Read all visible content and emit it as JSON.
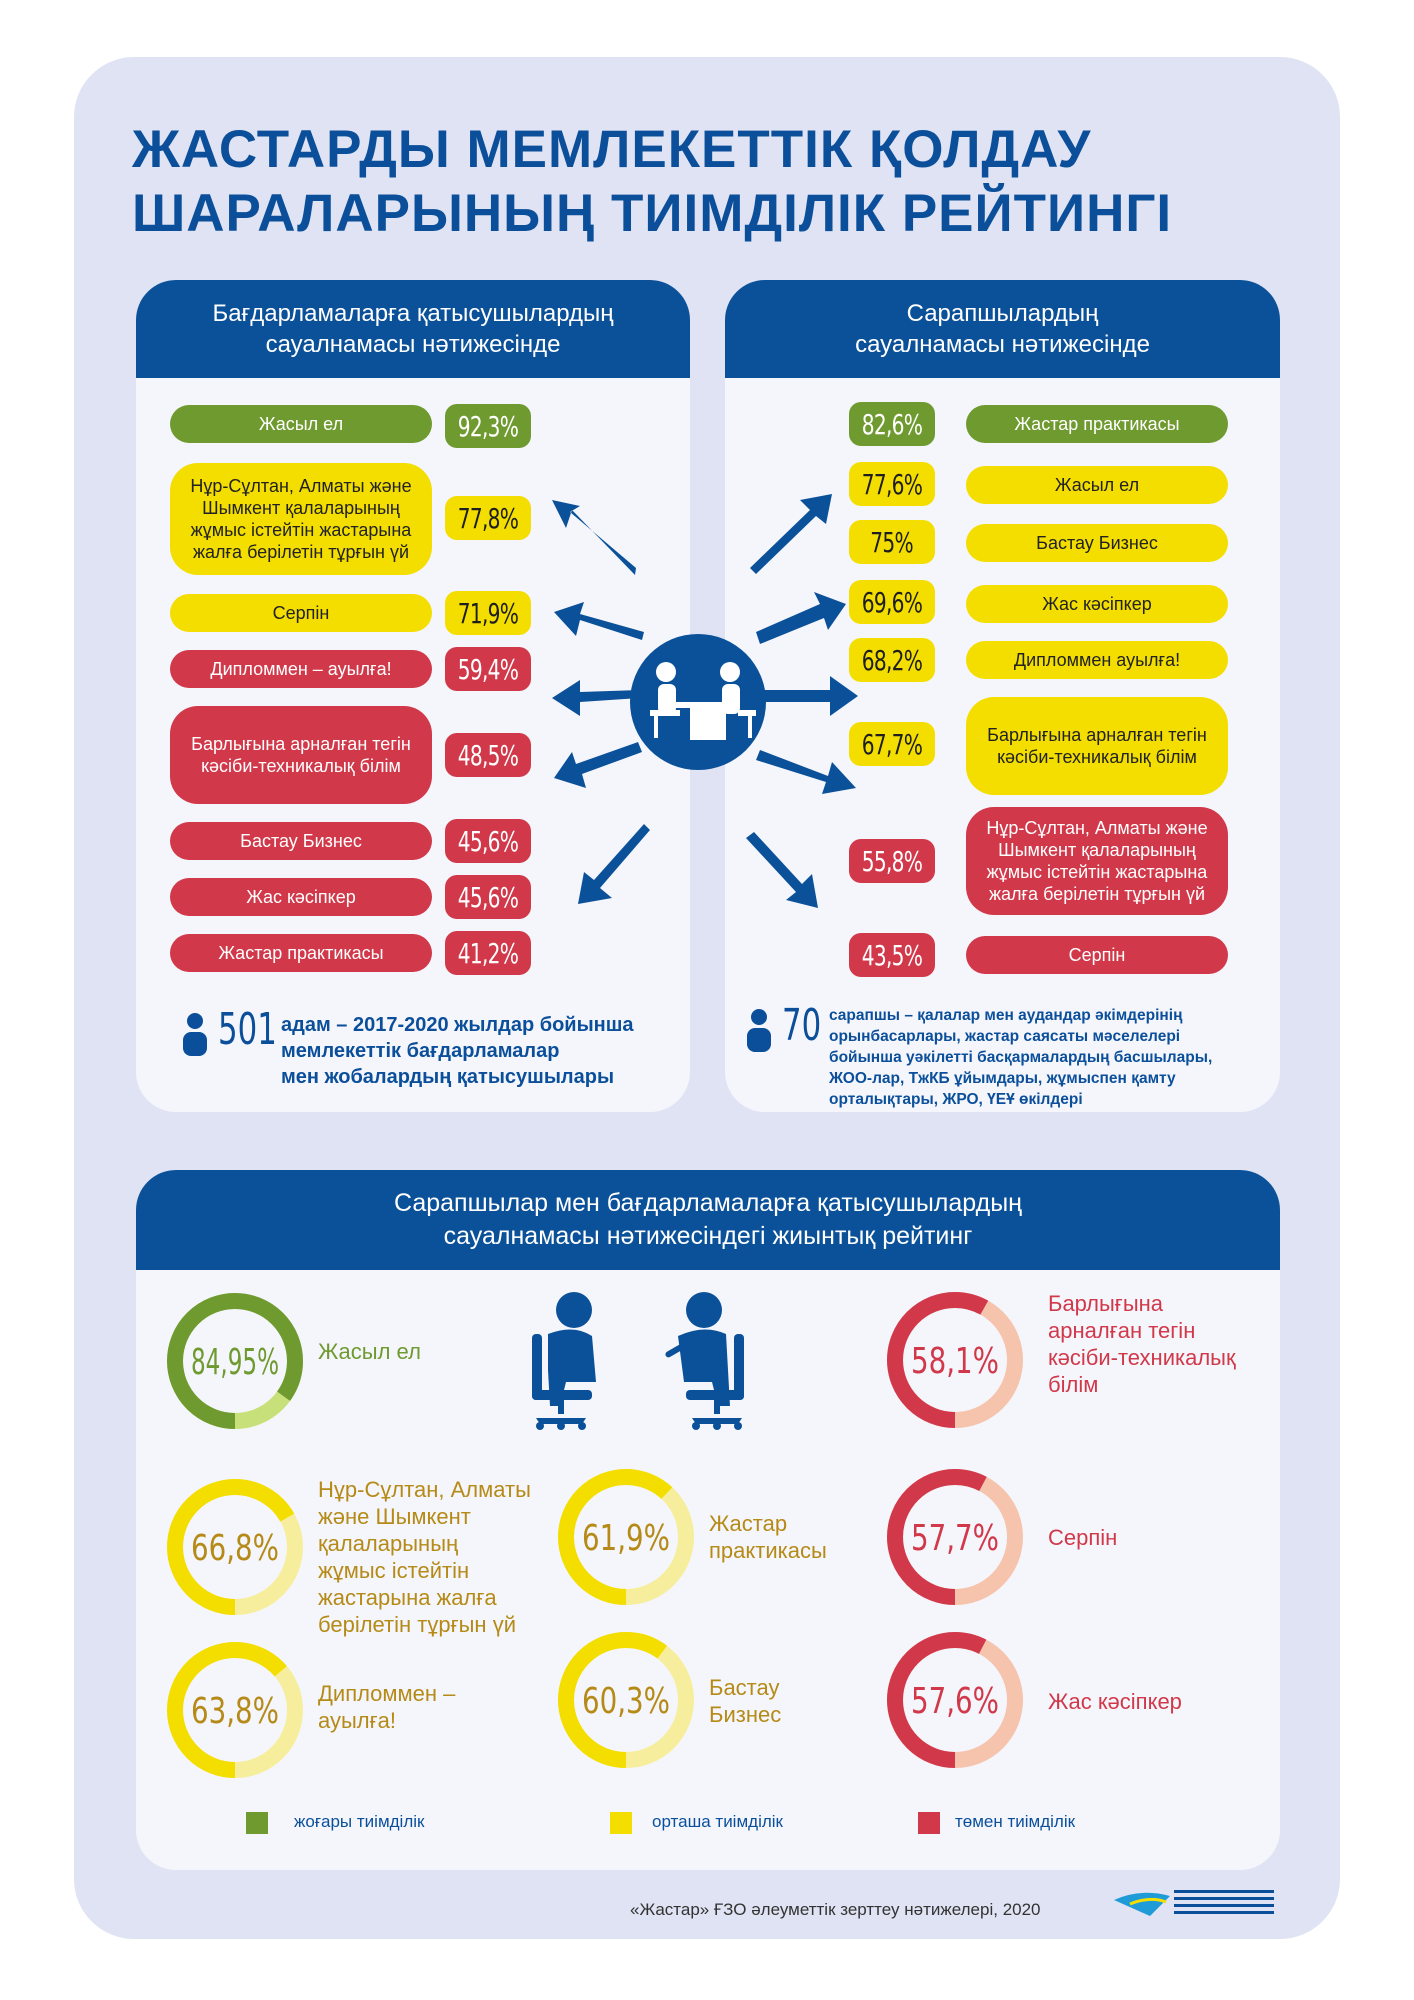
{
  "title": [
    "ЖАСТАРДЫ МЕМЛЕКЕТТІК ҚОЛДАУ",
    "ШАРАЛАРЫНЫҢ ТИІМДІЛІК РЕЙТИНГІ"
  ],
  "left_card": {
    "header": [
      "Бағдарламаларға қатысушылардың",
      "сауалнамасы нәтижесінде"
    ],
    "items": [
      {
        "label": "Жасыл ел",
        "value": "92,3%",
        "level": "green"
      },
      {
        "label": "Нұр-Сұлтан, Алматы және Шымкент қалаларының жұмыс істейтін жастарына жалға берілетін тұрғын үй",
        "value": "77,8%",
        "level": "yellow"
      },
      {
        "label": "Серпін",
        "value": "71,9%",
        "level": "yellow"
      },
      {
        "label": "Дипломмен – ауылға!",
        "value": "59,4%",
        "level": "red"
      },
      {
        "label": "Барлығына арналған тегін кәсіби-техникалық білім",
        "value": "48,5%",
        "level": "red"
      },
      {
        "label": "Бастау Бизнес",
        "value": "45,6%",
        "level": "red"
      },
      {
        "label": "Жас кәсіпкер",
        "value": "45,6%",
        "level": "red"
      },
      {
        "label": "Жастар практикасы",
        "value": "41,2%",
        "level": "red"
      }
    ],
    "count": "501",
    "count_note": [
      "адам – 2017-2020 жылдар бойынша",
      "мемлекеттік бағдарламалар",
      "мен жобалардың қатысушылары"
    ]
  },
  "right_card": {
    "header": [
      "Сарапшылардың",
      "сауалнамасы нәтижесінде"
    ],
    "items": [
      {
        "label": "Жастар практикасы",
        "value": "82,6%",
        "level": "green"
      },
      {
        "label": "Жасыл ел",
        "value": "77,6%",
        "level": "yellow"
      },
      {
        "label": "Бастау Бизнес",
        "value": "75%",
        "level": "yellow"
      },
      {
        "label": "Жас кәсіпкер",
        "value": "69,6%",
        "level": "yellow"
      },
      {
        "label": "Дипломмен ауылға!",
        "value": "68,2%",
        "level": "yellow"
      },
      {
        "label": "Барлығына арналған тегін кәсіби-техникалық білім",
        "value": "67,7%",
        "level": "yellow"
      },
      {
        "label": "Нұр-Сұлтан, Алматы және Шымкент қалаларының жұмыс істейтін жастарына жалға берілетін тұрғын үй",
        "value": "55,8%",
        "level": "red"
      },
      {
        "label": "Серпін",
        "value": "43,5%",
        "level": "red"
      }
    ],
    "count": "70",
    "count_note": [
      "сарапшы – қалалар мен аудандар әкімдерінің",
      "орынбасарлары, жастар саясаты мәселелері",
      "бойынша уәкілетті басқармалардың басшылары,",
      "ЖОО-лар, ТжКБ ұйымдары, жұмыспен қамту",
      "орталықтары, ЖРО, ҮЕҰ өкілдері"
    ]
  },
  "bottom_card": {
    "header": [
      "Сарапшылар мен бағдарламаларға қатысушылардың",
      "сауалнамасы нәтижесіндегі жиынтық рейтинг"
    ],
    "rings": [
      {
        "value": "84,95%",
        "fraction": 0.8495,
        "label": [
          "Жасыл ел"
        ],
        "level": "green"
      },
      {
        "value": "58,1%",
        "fraction": 0.581,
        "label": [
          "Барлығына",
          "арналған тегін",
          "кәсіби-техникалық",
          "білім"
        ],
        "level": "red"
      },
      {
        "value": "66,8%",
        "fraction": 0.668,
        "label": [
          "Нұр-Сұлтан, Алматы",
          "және Шымкент",
          "қалаларының",
          "жұмыс істейтін",
          "жастарына жалға",
          "берілетін тұрғын үй"
        ],
        "level": "yellow"
      },
      {
        "value": "61,9%",
        "fraction": 0.619,
        "label": [
          "Жастар",
          "практикасы"
        ],
        "level": "yellow"
      },
      {
        "value": "57,7%",
        "fraction": 0.577,
        "label": [
          "Серпін"
        ],
        "level": "red"
      },
      {
        "value": "63,8%",
        "fraction": 0.638,
        "label": [
          "Дипломмен –",
          "ауылға!"
        ],
        "level": "yellow"
      },
      {
        "value": "60,3%",
        "fraction": 0.603,
        "label": [
          "Бастау",
          "Бизнес"
        ],
        "level": "yellow"
      },
      {
        "value": "57,6%",
        "fraction": 0.576,
        "label": [
          "Жас кәсіпкер"
        ],
        "level": "red"
      }
    ],
    "legend": [
      {
        "label": "жоғары тиімділік",
        "color": "#6f9a2f"
      },
      {
        "label": "орташа тиімділік",
        "color": "#f3de00"
      },
      {
        "label": "төмен тиімділік",
        "color": "#d1394a"
      }
    ]
  },
  "footer": "«Жастар» ҒЗО әлеуметтік зерттеу нәтижелері, 2020",
  "colors": {
    "blue": "#0b5199",
    "green": "#6f9a2f",
    "yellow": "#f3de00",
    "red": "#d1394a"
  }
}
